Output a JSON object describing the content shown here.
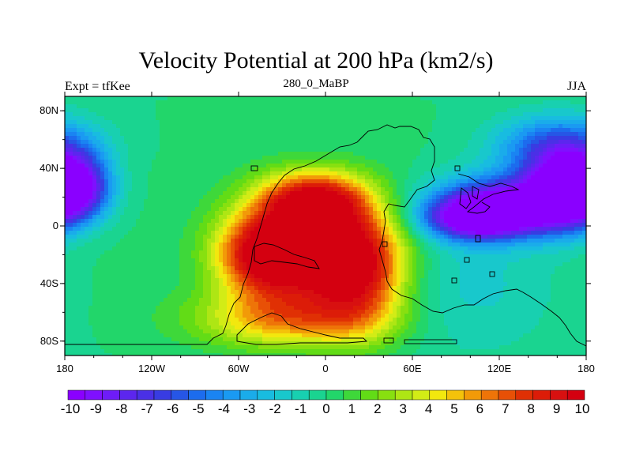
{
  "header": {
    "title": "Velocity Potential at 200 hPa (km2/s)",
    "left_label": "Expt = tfKee",
    "center_label": "280_0_MaBP",
    "right_label": "JJA"
  },
  "map": {
    "projection": "cylindrical-equidistant",
    "lon_range": [
      -180,
      180
    ],
    "lat_range": [
      -90,
      90
    ],
    "x_ticks": [
      {
        "value": -180,
        "label": "180"
      },
      {
        "value": -120,
        "label": "120W"
      },
      {
        "value": -60,
        "label": "60W"
      },
      {
        "value": 0,
        "label": "0"
      },
      {
        "value": 60,
        "label": "60E"
      },
      {
        "value": 120,
        "label": "120E"
      },
      {
        "value": 180,
        "label": "180"
      }
    ],
    "y_ticks": [
      {
        "value": 80,
        "label": "80N"
      },
      {
        "value": 40,
        "label": "40N"
      },
      {
        "value": 0,
        "label": "0"
      },
      {
        "value": -40,
        "label": "40S"
      },
      {
        "value": -80,
        "label": "80S"
      }
    ],
    "field": {
      "units": "km2/s",
      "features": [
        {
          "kind": "max",
          "lon": -5,
          "lat": -18,
          "value": 10.2,
          "sx": 34,
          "sy": 24
        },
        {
          "kind": "max",
          "lon": -8,
          "lat": 18,
          "value": 9.0,
          "sx": 26,
          "sy": 14
        },
        {
          "kind": "max",
          "lon": -45,
          "lat": -20,
          "value": 7.5,
          "sx": 22,
          "sy": 20
        },
        {
          "kind": "max",
          "lon": 25,
          "lat": -35,
          "value": 6.0,
          "sx": 22,
          "sy": 28
        },
        {
          "kind": "max",
          "lon": -25,
          "lat": -65,
          "value": 5.5,
          "sx": 45,
          "sy": 14
        },
        {
          "kind": "min",
          "lon": 128,
          "lat": 15,
          "value": -10.2,
          "sx": 36,
          "sy": 14
        },
        {
          "kind": "min",
          "lon": 105,
          "lat": 5,
          "value": -9.5,
          "sx": 24,
          "sy": 10
        },
        {
          "kind": "min",
          "lon": 165,
          "lat": 25,
          "value": -10.0,
          "sx": 18,
          "sy": 18
        },
        {
          "kind": "min",
          "lon": -170,
          "lat": 28,
          "value": -8.5,
          "sx": 15,
          "sy": 15
        },
        {
          "kind": "min",
          "lon": 160,
          "lat": 55,
          "value": -6.0,
          "sx": 30,
          "sy": 15
        },
        {
          "kind": "min",
          "lon": 100,
          "lat": -40,
          "value": -1.8,
          "sx": 45,
          "sy": 35
        }
      ]
    }
  },
  "colorbar": {
    "colors": [
      "#8a00ff",
      "#7f10ff",
      "#6e1cf8",
      "#5c26ee",
      "#4a30e6",
      "#383ce2",
      "#2656e6",
      "#1c6cee",
      "#1a84f2",
      "#1a9af2",
      "#1aacea",
      "#18bce0",
      "#18c8cc",
      "#18d0b0",
      "#1ad490",
      "#22d66a",
      "#3ed83a",
      "#62dc16",
      "#88e010",
      "#aee614",
      "#d2ec16",
      "#f2e80e",
      "#f4c20a",
      "#f29a08",
      "#ee7408",
      "#e85006",
      "#e03004",
      "#dc1c08",
      "#d81010",
      "#d40010"
    ],
    "ticks": [
      "-10",
      "-9",
      "-8",
      "-7",
      "-6",
      "-5",
      "-4",
      "-3",
      "-2",
      "-1",
      "0",
      "1",
      "2",
      "3",
      "4",
      "5",
      "6",
      "7",
      "8",
      "9",
      "10"
    ]
  }
}
